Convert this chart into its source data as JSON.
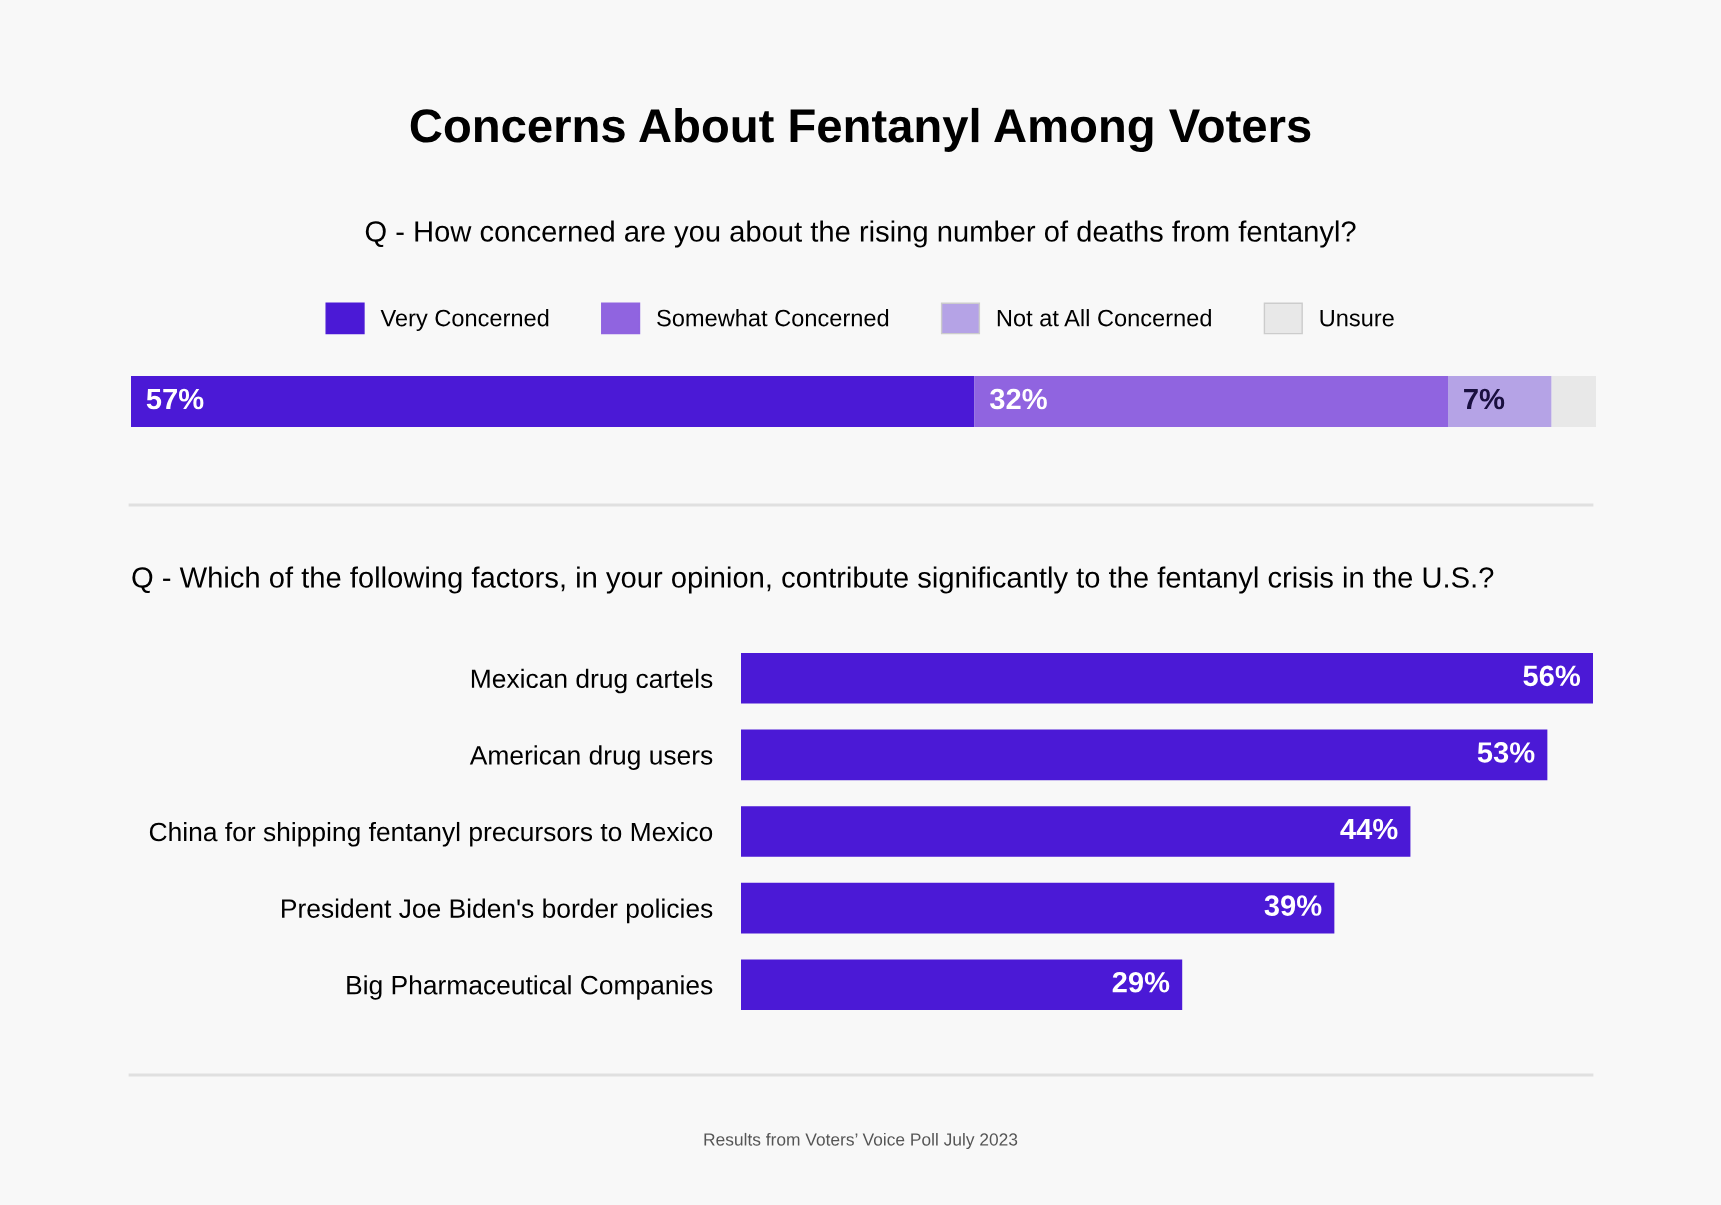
{
  "chart_data": [
    {
      "type": "bar",
      "orientation": "horizontal",
      "stacked": true,
      "title": "Concerns About Fentanyl Among Voters",
      "subtitle": "Q - How concerned are you about the rising number of deaths from fentanyl?",
      "categories": [
        null
      ],
      "legend": "top",
      "series": [
        {
          "name": "Very Concerned",
          "color": "#4b19d6",
          "values": [
            57
          ],
          "value_labels": [
            "57%"
          ]
        },
        {
          "name": "Somewhat Concerned",
          "color": "#9064e0",
          "values": [
            32
          ],
          "value_labels": [
            "32%"
          ]
        },
        {
          "name": "Not at All Concerned",
          "color": "#b5a3e6",
          "values": [
            7
          ],
          "value_labels": [
            "7%"
          ]
        },
        {
          "name": "Unsure",
          "color": "#e8e8e8",
          "values": [
            3
          ],
          "value_labels": [
            null
          ]
        }
      ]
    },
    {
      "type": "bar",
      "orientation": "horizontal",
      "title": "Q - Which of the following factors, in your opinion, contribute significantly to the fentanyl crisis in the U.S.?",
      "categories": [
        "Mexican drug cartels",
        "American drug users",
        "China for shipping fentanyl precursors to Mexico",
        "President Joe Biden's border policies",
        "Big Pharmaceutical Companies"
      ],
      "values": [
        56,
        53,
        44,
        39,
        29
      ],
      "color": "#4b19d6",
      "value_labels": [
        "56%",
        "53%",
        "44%",
        "39%",
        "29%"
      ],
      "annotations": [
        "Results from Voters’ Voice Poll July 2023"
      ]
    }
  ]
}
